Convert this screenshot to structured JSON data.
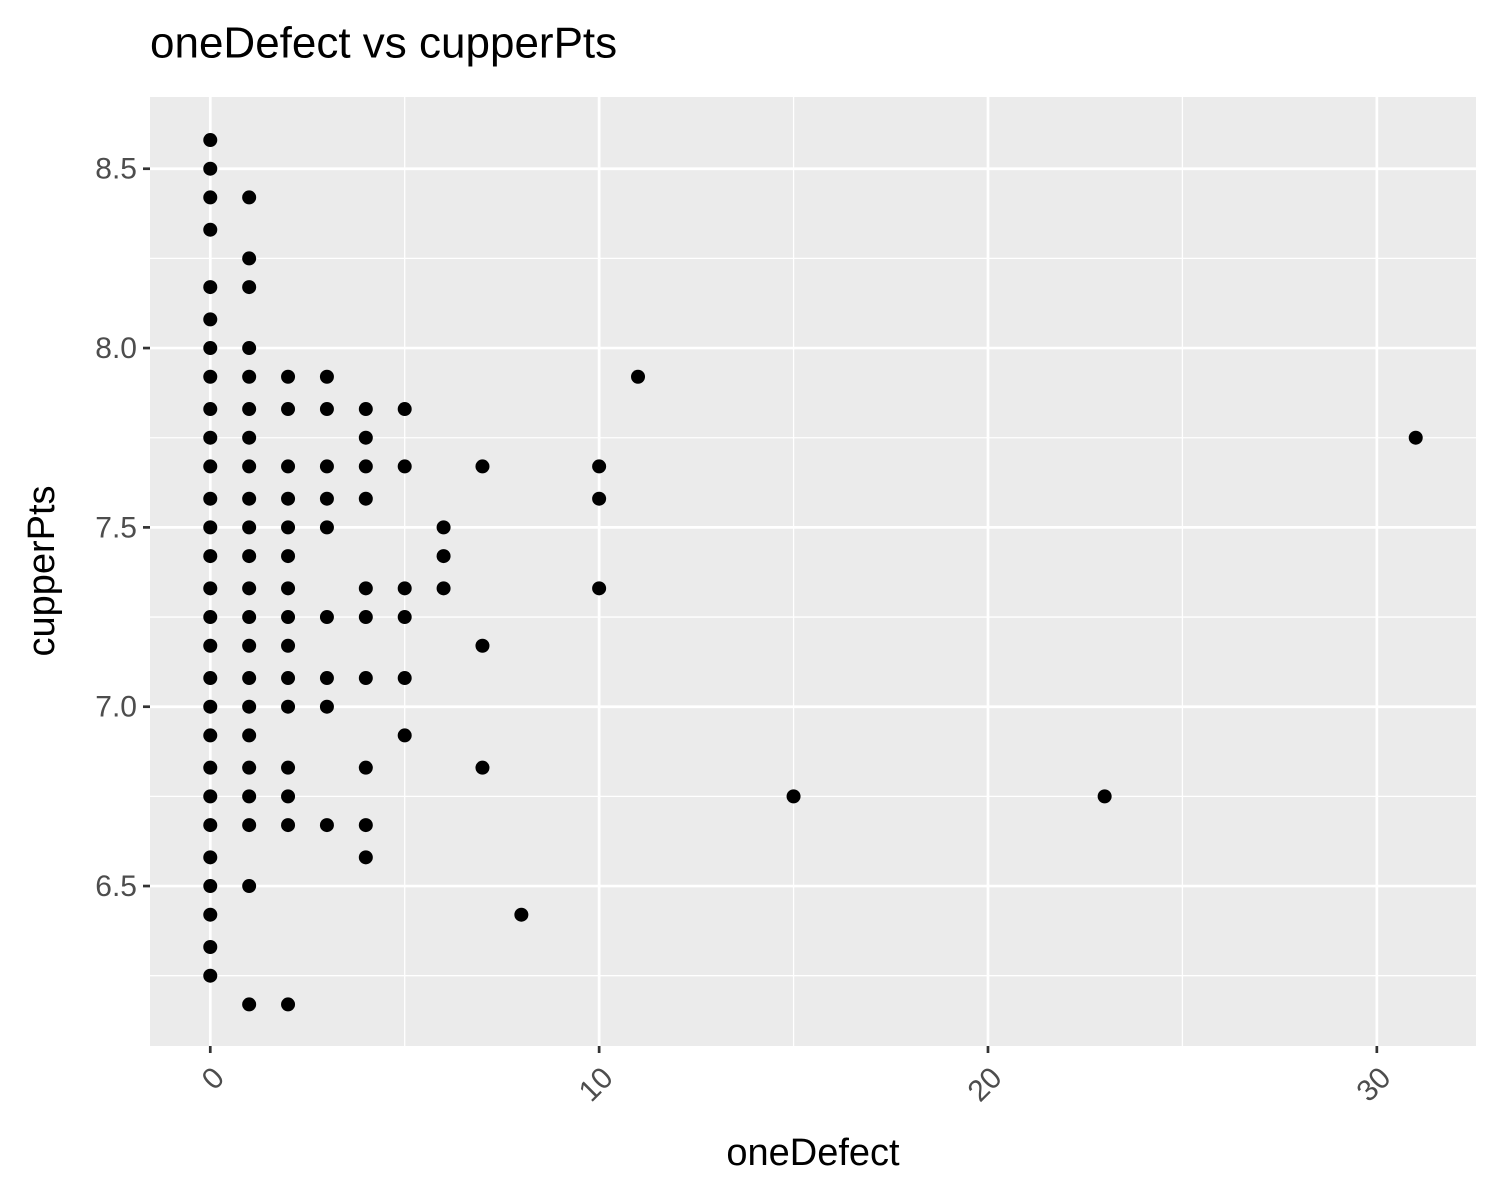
{
  "chart_data": {
    "type": "scatter",
    "title": "oneDefect vs cupperPts",
    "x_label": "oneDefect",
    "y_label": "cupperPts",
    "xlim": [
      -1.55,
      32.55
    ],
    "ylim": [
      6.054,
      8.7
    ],
    "xticks": [
      0,
      10,
      20,
      30
    ],
    "yticks": [
      {
        "value": 6.5,
        "label": "6.5"
      },
      {
        "value": 7,
        "label": "7.0"
      },
      {
        "value": 7.5,
        "label": "7.5"
      },
      {
        "value": 8,
        "label": "8.0"
      },
      {
        "value": 8.5,
        "label": "8.5"
      }
    ],
    "x_minor_grid": [
      5,
      15,
      25
    ],
    "y_minor_grid": [
      6.25,
      6.75,
      7.25,
      7.75,
      8.25
    ],
    "grid": true,
    "color": "#000000",
    "panel_color": "#ebebeb",
    "x": [
      0,
      0,
      0,
      0,
      0,
      0,
      0,
      0,
      0,
      0,
      0,
      0,
      0,
      0,
      0,
      0,
      0,
      0,
      0,
      0,
      0,
      0,
      0,
      0,
      0,
      0,
      0,
      0,
      1,
      1,
      1,
      1,
      1,
      1,
      1,
      1,
      1,
      1,
      1,
      1,
      1,
      1,
      1,
      1,
      1,
      1,
      1,
      1,
      1,
      1,
      2,
      2,
      2,
      2,
      2,
      2,
      2,
      2,
      2,
      2,
      2,
      2,
      2,
      2,
      2,
      3,
      3,
      3,
      3,
      3,
      3,
      3,
      3,
      3,
      4,
      4,
      4,
      4,
      4,
      4,
      4,
      4,
      4,
      4,
      5,
      5,
      5,
      5,
      5,
      5,
      6,
      6,
      6,
      7,
      7,
      7,
      8,
      10,
      10,
      10,
      11,
      15,
      23,
      31
    ],
    "y": [
      8.58,
      8.5,
      8.42,
      8.33,
      8.17,
      8.08,
      8.0,
      7.92,
      7.83,
      7.75,
      7.67,
      7.58,
      7.5,
      7.42,
      7.33,
      7.25,
      7.17,
      7.08,
      7.0,
      6.92,
      6.83,
      6.75,
      6.67,
      6.58,
      6.5,
      6.42,
      6.33,
      6.25,
      8.42,
      8.25,
      8.17,
      8.0,
      7.92,
      7.83,
      7.75,
      7.67,
      7.58,
      7.5,
      7.42,
      7.33,
      7.25,
      7.17,
      7.08,
      7.0,
      6.92,
      6.83,
      6.75,
      6.67,
      6.5,
      6.17,
      7.92,
      7.83,
      7.67,
      7.58,
      7.5,
      7.42,
      7.33,
      7.25,
      7.17,
      7.08,
      7.0,
      6.83,
      6.75,
      6.67,
      6.17,
      7.92,
      7.83,
      7.67,
      7.58,
      7.5,
      7.25,
      7.08,
      7.0,
      6.67,
      7.83,
      7.75,
      7.67,
      7.58,
      7.33,
      7.25,
      7.08,
      6.83,
      6.67,
      6.58,
      7.83,
      7.67,
      7.33,
      7.25,
      7.08,
      6.92,
      7.5,
      7.42,
      7.33,
      7.67,
      7.17,
      6.83,
      6.42,
      7.67,
      7.58,
      7.33,
      7.92,
      6.75,
      6.75,
      7.75
    ]
  }
}
